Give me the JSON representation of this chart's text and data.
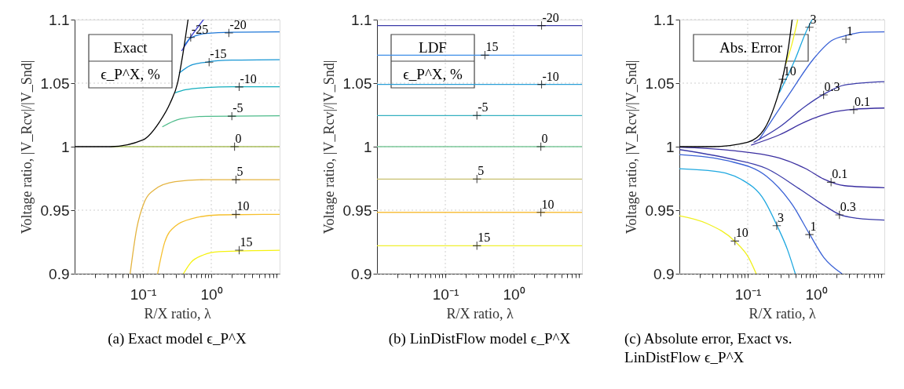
{
  "chart_data": [
    {
      "type": "line",
      "title": "(a) Exact model ϵ_P^X",
      "xlabel": "R/X ratio, λ",
      "ylabel": "Voltage ratio, |V_Rcv|/|V_Snd|",
      "log": "x",
      "grid": true,
      "legend_title": "Exact",
      "line_style": "solid",
      "xlim": [
        0.01,
        10
      ],
      "ylim": [
        0.9,
        1.1
      ],
      "yticks": [
        0.9,
        0.95,
        1,
        1.05,
        1.1
      ],
      "xticks": [
        {
          "value": 0.02,
          "label": null
        },
        {
          "value": 0.03,
          "label": null
        },
        {
          "value": 0.04,
          "label": null
        },
        {
          "value": 0.05,
          "label": null
        },
        {
          "value": 0.06,
          "label": null
        },
        {
          "value": 0.07,
          "label": null
        },
        {
          "value": 0.08,
          "label": null
        },
        {
          "value": 0.09,
          "label": null
        },
        {
          "value": 0.1,
          "label": "10⁻¹"
        },
        {
          "value": 0.2,
          "label": null
        },
        {
          "value": 0.3,
          "label": null
        },
        {
          "value": 0.4,
          "label": null
        },
        {
          "value": 0.5,
          "label": null
        },
        {
          "value": 0.6,
          "label": null
        },
        {
          "value": 0.7,
          "label": null
        },
        {
          "value": 0.8,
          "label": null
        },
        {
          "value": 0.9,
          "label": null
        },
        {
          "value": 1,
          "label": "10⁰"
        },
        {
          "value": 2,
          "label": null
        },
        {
          "value": 3,
          "label": null
        },
        {
          "value": 4,
          "label": null
        },
        {
          "value": 5,
          "label": null
        },
        {
          "value": 6,
          "label": null
        },
        {
          "value": 7,
          "label": null
        },
        {
          "value": 8,
          "label": null
        },
        {
          "value": 9,
          "label": null
        }
      ],
      "series": [
        {
          "type": "line",
          "color": "#a9be5c",
          "x": [
            0.034,
            10
          ],
          "values": [
            1,
            1
          ]
        },
        {
          "type": "line",
          "color": "#3d3fd0",
          "x": [
            0.368,
            0.521,
            0.77
          ],
          "values": [
            1.0753,
            1.0877,
            1.1
          ]
        },
        {
          "type": "line",
          "color": "#1f78d8",
          "x": [
            0.402,
            0.499,
            0.84,
            2.0,
            10
          ],
          "values": [
            1.0794,
            1.0856,
            1.0891,
            1.0901,
            1.0903
          ]
        },
        {
          "type": "line",
          "color": "#1796d4",
          "x": [
            0.337,
            0.499,
            0.84,
            2.0,
            10
          ],
          "values": [
            1.0578,
            1.064,
            1.0665,
            1.0681,
            1.0685
          ]
        },
        {
          "type": "line",
          "color": "#14aebd",
          "x": [
            0.296,
            0.42,
            0.84,
            2.0,
            10
          ],
          "values": [
            1.0424,
            1.0448,
            1.0465,
            1.0471,
            1.0471
          ]
        },
        {
          "type": "line",
          "color": "#4dbb8a",
          "x": [
            0.192,
            0.352,
            0.84,
            10
          ],
          "values": [
            1.0156,
            1.0218,
            1.0239,
            1.0243
          ]
        },
        {
          "type": "line",
          "color": "#e4b440",
          "x": [
            0.065,
            0.081,
            0.104,
            0.148,
            0.296,
            0.84,
            10
          ],
          "values": [
            0.9,
            0.9354,
            0.9559,
            0.9662,
            0.9724,
            0.974,
            0.974
          ]
        },
        {
          "type": "line",
          "color": "#f6c02e",
          "x": [
            0.164,
            0.209,
            0.296,
            0.544,
            1.3,
            10
          ],
          "values": [
            0.9,
            0.9251,
            0.9374,
            0.9436,
            0.9463,
            0.9467
          ]
        },
        {
          "type": "line",
          "color": "#f5f20f",
          "x": [
            0.391,
            0.499,
            0.77,
            1.3,
            10
          ],
          "values": [
            0.9,
            0.9086,
            0.9148,
            0.9174,
            0.9185
          ]
        },
        {
          "type": "line",
          "color": "#000000",
          "x": [
            0.01,
            0.034,
            0.1,
            0.176,
            0.249,
            0.323,
            0.385,
            0.457
          ],
          "values": [
            1,
            1,
            1.0053,
            1.0197,
            1.0341,
            1.0506,
            1.0732,
            1.1
          ]
        }
      ],
      "annotations": [
        "ϵ_P^X, %",
        {
          "text": "-25",
          "x": 0.5,
          "y": 1.086
        },
        {
          "text": "-20",
          "x": 1.81,
          "y": 1.0895
        },
        {
          "text": "-15",
          "x": 0.93,
          "y": 1.0665
        },
        {
          "text": "-10",
          "x": 2.56,
          "y": 1.047
        },
        {
          "text": "-5",
          "x": 2.0,
          "y": 1.024
        },
        {
          "text": "0",
          "x": 2.19,
          "y": 1.0
        },
        {
          "text": "5",
          "x": 2.3,
          "y": 0.974
        },
        {
          "text": "10",
          "x": 2.3,
          "y": 0.9467
        },
        {
          "text": "15",
          "x": 2.56,
          "y": 0.9185
        }
      ]
    },
    {
      "type": "line",
      "title": "(b) LinDistFlow model ϵ_P^X",
      "xlabel": "R/X ratio, λ",
      "ylabel": "Voltage ratio, |V_Rcv|/|V_Snd|",
      "log": "x",
      "grid": true,
      "legend_title": "LDF",
      "line_style": "solid",
      "xlim": [
        0.01,
        10
      ],
      "ylim": [
        0.9,
        1.1
      ],
      "yticks": [
        0.9,
        0.95,
        1,
        1.05,
        1.1
      ],
      "xticks": [
        {
          "value": 0.02,
          "label": null
        },
        {
          "value": 0.03,
          "label": null
        },
        {
          "value": 0.04,
          "label": null
        },
        {
          "value": 0.05,
          "label": null
        },
        {
          "value": 0.06,
          "label": null
        },
        {
          "value": 0.07,
          "label": null
        },
        {
          "value": 0.08,
          "label": null
        },
        {
          "value": 0.09,
          "label": null
        },
        {
          "value": 0.1,
          "label": "10⁻¹"
        },
        {
          "value": 0.2,
          "label": null
        },
        {
          "value": 0.3,
          "label": null
        },
        {
          "value": 0.4,
          "label": null
        },
        {
          "value": 0.5,
          "label": null
        },
        {
          "value": 0.6,
          "label": null
        },
        {
          "value": 0.7,
          "label": null
        },
        {
          "value": 0.8,
          "label": null
        },
        {
          "value": 0.9,
          "label": null
        },
        {
          "value": 1,
          "label": "10⁰"
        },
        {
          "value": 2,
          "label": null
        },
        {
          "value": 3,
          "label": null
        },
        {
          "value": 4,
          "label": null
        },
        {
          "value": 5,
          "label": null
        },
        {
          "value": 6,
          "label": null
        },
        {
          "value": 7,
          "label": null
        },
        {
          "value": 8,
          "label": null
        },
        {
          "value": 9,
          "label": null
        }
      ],
      "series": [
        {
          "type": "line",
          "color": "#3a3aa8",
          "x": [
            0.01,
            10
          ],
          "values": [
            1.0953,
            1.0953
          ]
        },
        {
          "type": "line",
          "color": "#3f8fe8",
          "x": [
            0.01,
            10
          ],
          "values": [
            1.072,
            1.072
          ]
        },
        {
          "type": "line",
          "color": "#2aa0d8",
          "x": [
            0.01,
            10
          ],
          "values": [
            1.049,
            1.049
          ]
        },
        {
          "type": "line",
          "color": "#35b0c0",
          "x": [
            0.01,
            10
          ],
          "values": [
            1.0245,
            1.0245
          ]
        },
        {
          "type": "line",
          "color": "#7cc89a",
          "x": [
            0.01,
            10
          ],
          "values": [
            1.0,
            1.0
          ]
        },
        {
          "type": "line",
          "color": "#c8c070",
          "x": [
            0.01,
            10
          ],
          "values": [
            0.9745,
            0.9745
          ]
        },
        {
          "type": "line",
          "color": "#f8c040",
          "x": [
            0.01,
            10
          ],
          "values": [
            0.9483,
            0.9483
          ]
        },
        {
          "type": "line",
          "color": "#f0f030",
          "x": [
            0.01,
            10
          ],
          "values": [
            0.922,
            0.922
          ]
        }
      ],
      "annotations": [
        "ϵ_P^X, %",
        {
          "text": "-20",
          "x": 2.56,
          "y": 1.0953
        },
        {
          "text": "15",
          "x": 0.38,
          "y": 1.072
        },
        {
          "text": "-10",
          "x": 2.56,
          "y": 1.049
        },
        {
          "text": "-5",
          "x": 0.29,
          "y": 1.0245
        },
        {
          "text": "0",
          "x": 2.5,
          "y": 1.0
        },
        {
          "text": "5",
          "x": 0.29,
          "y": 0.9745
        },
        {
          "text": "10",
          "x": 2.5,
          "y": 0.9483
        },
        {
          "text": "15",
          "x": 0.29,
          "y": 0.922
        }
      ]
    },
    {
      "type": "line",
      "title": "(c) Absolute error, Exact vs. LinDistFlow ϵ_P^X",
      "xlabel": "R/X ratio, λ",
      "ylabel": "Voltage ratio, |V_Rcv|/|V_Snd|",
      "log": "x",
      "grid": true,
      "line_style": "solid",
      "xlim": [
        0.01,
        10
      ],
      "ylim": [
        0.9,
        1.1
      ],
      "yticks": [
        0.9,
        0.95,
        1,
        1.05,
        1.1
      ],
      "xticks": [
        {
          "value": 0.02,
          "label": null
        },
        {
          "value": 0.03,
          "label": null
        },
        {
          "value": 0.04,
          "label": null
        },
        {
          "value": 0.05,
          "label": null
        },
        {
          "value": 0.06,
          "label": null
        },
        {
          "value": 0.07,
          "label": null
        },
        {
          "value": 0.08,
          "label": null
        },
        {
          "value": 0.09,
          "label": null
        },
        {
          "value": 0.1,
          "label": "10⁻¹"
        },
        {
          "value": 0.2,
          "label": null
        },
        {
          "value": 0.3,
          "label": null
        },
        {
          "value": 0.4,
          "label": null
        },
        {
          "value": 0.5,
          "label": null
        },
        {
          "value": 0.6,
          "label": null
        },
        {
          "value": 0.7,
          "label": null
        },
        {
          "value": 0.8,
          "label": null
        },
        {
          "value": 0.9,
          "label": null
        },
        {
          "value": 1,
          "label": "10⁰"
        },
        {
          "value": 2,
          "label": null
        },
        {
          "value": 3,
          "label": null
        },
        {
          "value": 4,
          "label": null
        },
        {
          "value": 5,
          "label": null
        },
        {
          "value": 6,
          "label": null
        },
        {
          "value": 7,
          "label": null
        },
        {
          "value": 8,
          "label": null
        },
        {
          "value": 9,
          "label": null
        }
      ],
      "series": [
        {
          "type": "line",
          "color": "#f0f020",
          "x": [
            0.36,
            0.44,
            0.54
          ],
          "values": [
            1.065,
            1.08,
            1.1
          ]
        },
        {
          "type": "line",
          "color": "#1fa8e0",
          "x": [
            0.29,
            0.497,
            0.705,
            0.877
          ],
          "values": [
            1.0424,
            1.069,
            1.0897,
            1.1
          ]
        },
        {
          "type": "line",
          "color": "#3a62d6",
          "x": [
            0.146,
            0.417,
            0.916,
            1.69,
            2.86,
            4.83,
            10
          ],
          "values": [
            1.0053,
            1.0424,
            1.069,
            1.0835,
            1.0877,
            1.0901,
            1.0903
          ]
        },
        {
          "type": "line",
          "color": "#3a3aa8",
          "x": [
            0.122,
            0.294,
            0.705,
            1.3,
            2.62,
            10
          ],
          "values": [
            1.0033,
            1.0156,
            1.032,
            1.0413,
            1.0486,
            1.0512
          ]
        },
        {
          "type": "line",
          "color": "#3a2ea0",
          "x": [
            0.112,
            0.294,
            0.705,
            1.69,
            3.56,
            10
          ],
          "values": [
            1.0012,
            1.0094,
            1.0197,
            1.0269,
            1.0294,
            1.0304
          ]
        },
        {
          "type": "line",
          "color": "#3a2ea0",
          "x": [
            0.01,
            0.051,
            0.294,
            0.705,
            1.3,
            2.62,
            10
          ],
          "values": [
            0.9996,
            0.9973,
            0.9909,
            0.9827,
            0.9745,
            0.9693,
            0.9677
          ]
        },
        {
          "type": "line",
          "color": "#3a3aa8",
          "x": [
            0.01,
            0.051,
            0.19,
            0.592,
            1.3,
            2.2,
            4.06,
            10
          ],
          "values": [
            0.9977,
            0.9909,
            0.9827,
            0.9662,
            0.9539,
            0.9467,
            0.9436,
            0.9422
          ]
        },
        {
          "type": "line",
          "color": "#3a62d6",
          "x": [
            0.01,
            0.051,
            0.19,
            0.455,
            0.803,
            1.3,
            2.4
          ],
          "values": [
            0.9938,
            0.9889,
            0.9765,
            0.9539,
            0.9312,
            0.9127,
            0.9
          ]
        },
        {
          "type": "line",
          "color": "#1fa8e0",
          "x": [
            0.01,
            0.0329,
            0.0789,
            0.174,
            0.269,
            0.382,
            0.497
          ],
          "values": [
            0.9827,
            0.9806,
            0.9745,
            0.958,
            0.9378,
            0.9189,
            0.9
          ]
        },
        {
          "type": "line",
          "color": "#f0f020",
          "x": [
            0.01,
            0.0253,
            0.0662,
            0.103,
            0.133
          ],
          "values": [
            0.9456,
            0.9395,
            0.9251,
            0.9127,
            0.9
          ]
        },
        {
          "type": "line",
          "color": "#000000",
          "x": [
            0.01,
            0.03,
            0.1,
            0.174,
            0.247,
            0.32,
            0.398,
            0.447
          ],
          "values": [
            1,
            1,
            1.0035,
            1.0136,
            1.032,
            1.0527,
            1.0794,
            1.1
          ]
        }
      ],
      "annotations": [
        "Abs. Error",
        {
          "text": "10",
          "x": 0.326,
          "y": 1.053
        },
        {
          "text": "3",
          "x": 0.8,
          "y": 1.094
        },
        {
          "text": "1",
          "x": 2.74,
          "y": 1.0846
        },
        {
          "text": "0.3",
          "x": 1.29,
          "y": 1.0407
        },
        {
          "text": "0.1",
          "x": 3.56,
          "y": 1.029
        },
        {
          "text": "0.1",
          "x": 1.66,
          "y": 0.972
        },
        {
          "text": "0.3",
          "x": 2.2,
          "y": 0.9463
        },
        {
          "text": "1",
          "x": 0.8,
          "y": 0.9308
        },
        {
          "text": "3",
          "x": 0.266,
          "y": 0.9378
        },
        {
          "text": "10",
          "x": 0.065,
          "y": 0.9257
        }
      ]
    }
  ]
}
